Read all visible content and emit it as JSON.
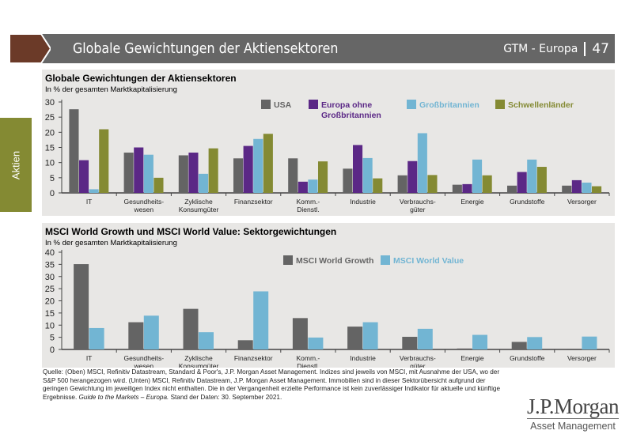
{
  "header": {
    "title": "Globale Gewichtungen der Aktiensektoren",
    "series_label": "GTM - Europa",
    "page_number": "47"
  },
  "side_tab": {
    "label": "Aktien"
  },
  "colors": {
    "header_bg": "#666666",
    "chevron": "#6b3a28",
    "side_tab": "#848a33",
    "panel_bg": "#e8e7e5"
  },
  "chart_data": [
    {
      "type": "bar",
      "title": "Globale Gewichtungen der Aktiensektoren",
      "subtitle": "In % der gesamten Marktkapitalisierung",
      "categories": [
        "IT",
        "Gesundheits-\nwesen",
        "Zyklische\nKonsumgüter",
        "Finanzsektor",
        "Komm.-\nDienstl.",
        "Industrie",
        "Verbrauchs-\ngüter",
        "Energie",
        "Grundstoffe",
        "Versorger"
      ],
      "ylim": [
        0,
        30
      ],
      "yticks": [
        0,
        5,
        10,
        15,
        20,
        25,
        30
      ],
      "grid": false,
      "legend_position": "top-right",
      "series": [
        {
          "name": "USA",
          "color": "#646464",
          "values": [
            27.6,
            13.3,
            12.4,
            11.4,
            11.4,
            8.0,
            5.8,
            2.7,
            2.4,
            2.4
          ]
        },
        {
          "name": "Europa ohne\nGroßbritannien",
          "color": "#5b2886",
          "values": [
            10.8,
            15.0,
            13.3,
            15.5,
            3.7,
            15.8,
            10.5,
            2.9,
            6.9,
            4.2
          ]
        },
        {
          "name": "Großbritannien",
          "color": "#72b5d3",
          "values": [
            1.2,
            12.6,
            6.3,
            17.8,
            4.4,
            11.5,
            19.7,
            11.0,
            11.0,
            3.4
          ]
        },
        {
          "name": "Schwellenländer",
          "color": "#848a33",
          "values": [
            21.0,
            5.0,
            14.7,
            19.5,
            10.4,
            4.8,
            5.9,
            5.8,
            8.6,
            2.2
          ]
        }
      ]
    },
    {
      "type": "bar",
      "title": "MSCI World Growth und MSCI World Value: Sektorgewichtungen",
      "subtitle": "In % der gesamten Marktkapitalisierung",
      "categories": [
        "IT",
        "Gesundheits-\nwesen",
        "Zyklische\nKonsumgüter",
        "Finanzsektor",
        "Komm.-\nDienstl.",
        "Industrie",
        "Verbrauchs-\ngüter",
        "Energie",
        "Grundstoffe",
        "Versorger"
      ],
      "ylim": [
        0,
        40
      ],
      "yticks": [
        0,
        5,
        10,
        15,
        20,
        25,
        30,
        35,
        40
      ],
      "grid": false,
      "legend_position": "top-center",
      "series": [
        {
          "name": "MSCI World Growth",
          "color": "#646464",
          "values": [
            35.1,
            11.2,
            16.7,
            3.8,
            12.9,
            9.4,
            5.2,
            0.4,
            3.1,
            0.3
          ]
        },
        {
          "name": "MSCI World Value",
          "color": "#72b5d3",
          "values": [
            8.8,
            13.9,
            7.1,
            23.9,
            4.9,
            11.2,
            8.5,
            6.0,
            5.1,
            5.3
          ]
        }
      ]
    }
  ],
  "footnote": {
    "text": "Quelle: (Oben) MSCI, Refinitiv Datastream, Standard & Poor's, J.P. Morgan Asset Management. Indizes sind jeweils von MSCI, mit Ausnahme der USA, wo der S&P 500 herangezogen wird. (Unten) MSCI, Refinitiv Datastream, J.P. Morgan Asset Management. Immobilien sind in dieser Sektorübersicht aufgrund der geringen Gewichtung im jeweiligen Index nicht enthalten. Die in der Vergangenheit erzielte Performance ist kein zuverlässiger Indikator für aktuelle und künftige Ergebnisse. ",
    "italic": "Guide to the Markets – Europa.",
    "date": " Stand der Daten: 30. September 2021."
  },
  "logo": {
    "line1": "J.P.Morgan",
    "line2": "Asset Management"
  }
}
